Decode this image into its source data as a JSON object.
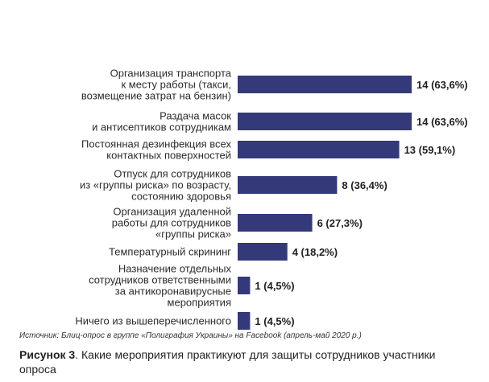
{
  "chart_data": {
    "type": "bar",
    "orientation": "horizontal",
    "bar_color": "#34397a",
    "categories": [
      [
        "Организация транспорта",
        "к месту работы (такси,",
        "возмещение затрат на бензин)"
      ],
      [
        "Раздача масок",
        "и антисептиков сотрудникам"
      ],
      [
        "Постоянная дезинфекция всех",
        "контактных поверхностей"
      ],
      [
        "Отпуск для сотрудников",
        "из «группы риска» по возрасту,",
        "состоянию здоровья"
      ],
      [
        "Организация удаленной",
        "работы для сотрудников",
        "«группы риска»"
      ],
      [
        "Температурный скрининг"
      ],
      [
        "Назначение отдельных",
        "сотрудников ответственными",
        "за антикоронавирусные",
        "мероприятия"
      ],
      [
        "Ничего из вышеперечисленного"
      ]
    ],
    "values": [
      14,
      14,
      13,
      8,
      6,
      4,
      1,
      1
    ],
    "value_labels": [
      "14 (63,6%)",
      "14 (63,6%)",
      "13 (59,1%)",
      "8 (36,4%)",
      "6 (27,3%)",
      "4 (18,2%)",
      "1 (4,5%)",
      "1 (4,5%)"
    ],
    "xlim": [
      0,
      14
    ]
  },
  "source": "Источник: Блиц-опрос в группе «Полиграфия Украины» на Facebook (апрель-май 2020 р.)",
  "caption": {
    "figure": "Рисунок 3",
    "text": ". Какие мероприятия практикуют для защиты сотрудников участники опроса"
  }
}
